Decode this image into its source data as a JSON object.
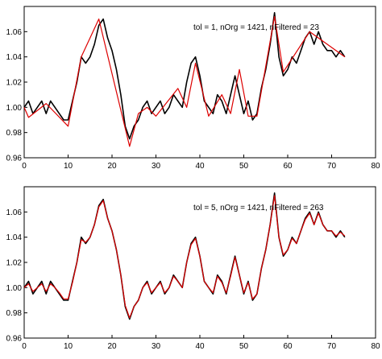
{
  "chart_data": [
    {
      "type": "line",
      "title": "tol = 1, nOrg = 1421, nFiltered = 23",
      "xlim": [
        0,
        80
      ],
      "xticks": [
        0,
        10,
        20,
        30,
        40,
        50,
        60,
        70,
        80
      ],
      "ylim": [
        0.96,
        1.08
      ],
      "yticks": [
        0.96,
        0.98,
        {
          "value": 1,
          "label": "1.00"
        },
        1.02,
        1.04,
        1.06
      ],
      "series": [
        {
          "color": "#000000",
          "x": [
            0,
            1,
            2,
            3,
            4,
            5,
            6,
            7,
            8,
            9,
            10,
            11,
            12,
            13,
            14,
            15,
            16,
            17,
            18,
            19,
            20,
            21,
            22,
            23,
            24,
            25,
            26,
            27,
            28,
            29,
            30,
            31,
            32,
            33,
            34,
            35,
            36,
            37,
            38,
            39,
            40,
            41,
            42,
            43,
            44,
            45,
            46,
            47,
            48,
            49,
            50,
            51,
            52,
            53,
            54,
            55,
            56,
            57,
            58,
            59,
            60,
            61,
            62,
            63,
            64,
            65,
            66,
            67,
            68,
            69,
            70,
            71,
            72,
            73
          ],
          "values": [
            1.0,
            1.005,
            0.995,
            1.0,
            1.005,
            0.995,
            1.005,
            1.0,
            0.995,
            0.99,
            0.99,
            1.005,
            1.02,
            1.04,
            1.035,
            1.04,
            1.05,
            1.065,
            1.07,
            1.055,
            1.045,
            1.03,
            1.01,
            0.985,
            0.975,
            0.985,
            0.99,
            1.0,
            1.005,
            0.995,
            1.0,
            1.005,
            0.995,
            1.0,
            1.01,
            1.005,
            1.0,
            1.02,
            1.035,
            1.04,
            1.025,
            1.005,
            1.0,
            0.995,
            1.01,
            1.005,
            0.995,
            1.01,
            1.025,
            1.01,
            0.995,
            1.005,
            0.99,
            0.995,
            1.015,
            1.03,
            1.05,
            1.075,
            1.04,
            1.025,
            1.03,
            1.04,
            1.035,
            1.045,
            1.055,
            1.06,
            1.05,
            1.06,
            1.05,
            1.045,
            1.045,
            1.04,
            1.045,
            1.04
          ]
        },
        {
          "color": "#dd0000",
          "x": [
            0,
            1,
            5,
            10,
            13,
            17,
            24,
            26,
            28,
            30,
            35,
            37,
            39,
            42,
            45,
            47,
            49,
            51,
            53,
            57,
            59,
            65,
            73
          ],
          "values": [
            1.0,
            0.992,
            1.003,
            0.985,
            1.04,
            1.07,
            0.969,
            0.995,
            1.0,
            0.993,
            1.015,
            1.0,
            1.035,
            0.993,
            1.01,
            0.995,
            1.03,
            0.993,
            0.993,
            1.072,
            1.028,
            1.06,
            1.04
          ]
        }
      ]
    },
    {
      "type": "line",
      "title": "tol = 5, nOrg = 1421, nFiltered = 263",
      "xlim": [
        0,
        80
      ],
      "xticks": [
        0,
        10,
        20,
        30,
        40,
        50,
        60,
        70,
        80
      ],
      "ylim": [
        0.96,
        1.08
      ],
      "yticks": [
        0.96,
        0.98,
        {
          "value": 1,
          "label": "1.00"
        },
        1.02,
        1.04,
        1.06
      ],
      "series": [
        {
          "color": "#000000",
          "x": [
            0,
            1,
            2,
            3,
            4,
            5,
            6,
            7,
            8,
            9,
            10,
            11,
            12,
            13,
            14,
            15,
            16,
            17,
            18,
            19,
            20,
            21,
            22,
            23,
            24,
            25,
            26,
            27,
            28,
            29,
            30,
            31,
            32,
            33,
            34,
            35,
            36,
            37,
            38,
            39,
            40,
            41,
            42,
            43,
            44,
            45,
            46,
            47,
            48,
            49,
            50,
            51,
            52,
            53,
            54,
            55,
            56,
            57,
            58,
            59,
            60,
            61,
            62,
            63,
            64,
            65,
            66,
            67,
            68,
            69,
            70,
            71,
            72,
            73
          ],
          "values": [
            1.0,
            1.005,
            0.995,
            1.0,
            1.005,
            0.995,
            1.005,
            1.0,
            0.995,
            0.99,
            0.99,
            1.005,
            1.02,
            1.04,
            1.035,
            1.04,
            1.05,
            1.065,
            1.07,
            1.055,
            1.045,
            1.03,
            1.01,
            0.985,
            0.975,
            0.985,
            0.99,
            1.0,
            1.005,
            0.995,
            1.0,
            1.005,
            0.995,
            1.0,
            1.01,
            1.005,
            1.0,
            1.02,
            1.035,
            1.04,
            1.025,
            1.005,
            1.0,
            0.995,
            1.01,
            1.005,
            0.995,
            1.01,
            1.025,
            1.01,
            0.995,
            1.005,
            0.99,
            0.995,
            1.015,
            1.03,
            1.05,
            1.075,
            1.04,
            1.025,
            1.03,
            1.04,
            1.035,
            1.045,
            1.055,
            1.06,
            1.05,
            1.06,
            1.05,
            1.045,
            1.045,
            1.04,
            1.045,
            1.04
          ]
        },
        {
          "color": "#dd0000",
          "x": [
            0,
            1,
            2,
            3,
            4,
            5,
            6,
            7,
            8,
            9,
            10,
            11,
            12,
            13,
            14,
            15,
            16,
            17,
            18,
            19,
            20,
            21,
            22,
            23,
            24,
            25,
            26,
            27,
            28,
            29,
            30,
            31,
            32,
            33,
            34,
            35,
            36,
            37,
            38,
            39,
            40,
            41,
            42,
            43,
            44,
            45,
            46,
            47,
            48,
            49,
            50,
            51,
            52,
            53,
            54,
            55,
            56,
            57,
            58,
            59,
            60,
            61,
            62,
            63,
            64,
            65,
            66,
            67,
            68,
            69,
            70,
            71,
            72,
            73
          ],
          "values": [
            1.0,
            1.003,
            0.997,
            1.0,
            1.003,
            0.997,
            1.003,
            1.0,
            0.996,
            0.991,
            0.991,
            1.004,
            1.02,
            1.038,
            1.036,
            1.04,
            1.05,
            1.064,
            1.069,
            1.055,
            1.045,
            1.03,
            1.01,
            0.986,
            0.976,
            0.985,
            0.99,
            1.0,
            1.004,
            0.996,
            1.0,
            1.004,
            0.996,
            1.0,
            1.009,
            1.005,
            1.0,
            1.02,
            1.034,
            1.039,
            1.025,
            1.005,
            1.0,
            0.996,
            1.009,
            1.004,
            0.996,
            1.009,
            1.024,
            1.01,
            0.996,
            1.004,
            0.991,
            0.995,
            1.015,
            1.03,
            1.05,
            1.073,
            1.04,
            1.026,
            1.03,
            1.039,
            1.035,
            1.045,
            1.054,
            1.059,
            1.05,
            1.059,
            1.05,
            1.045,
            1.045,
            1.041,
            1.044,
            1.041
          ]
        }
      ]
    }
  ]
}
